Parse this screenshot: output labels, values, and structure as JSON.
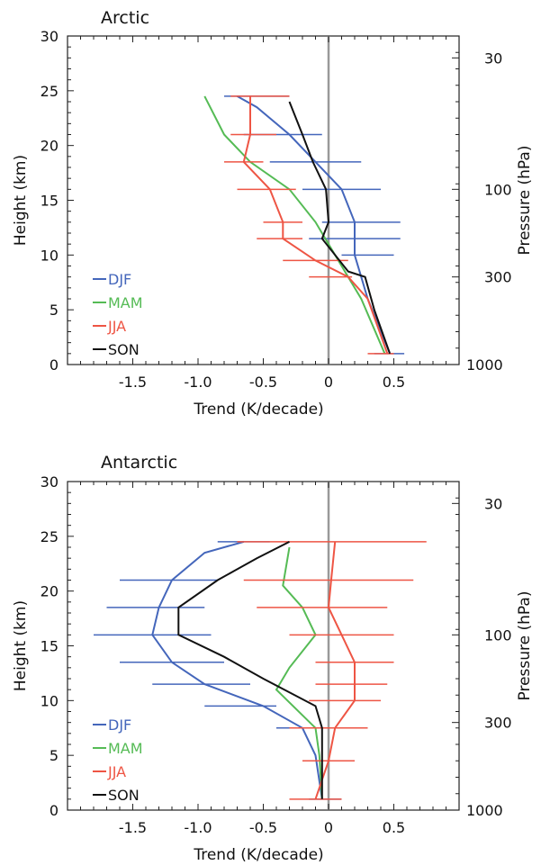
{
  "chart_data": [
    {
      "type": "line",
      "title": "Arctic",
      "xlabel": "Trend (K/decade)",
      "ylabel": "Height (km)",
      "ylabel_right": "Pressure (hPa)",
      "xlim": [
        -2.0,
        1.0
      ],
      "ylim": [
        0,
        30
      ],
      "xticks": [
        -1.5,
        -1.0,
        -0.5,
        0,
        0.5
      ],
      "xtick_labels": [
        "-1.5",
        "-1.0",
        "-0.5",
        "0",
        "0.5"
      ],
      "yticks": [
        0,
        5,
        10,
        15,
        20,
        25,
        30
      ],
      "ytick_labels": [
        "0",
        "5",
        "10",
        "15",
        "20",
        "25",
        "30"
      ],
      "right_ticks": [
        {
          "height": 28,
          "label": "30"
        },
        {
          "height": 16,
          "label": "100"
        },
        {
          "height": 8,
          "label": "300"
        },
        {
          "height": 0,
          "label": "1000"
        }
      ],
      "zero_line": 0,
      "legend_position": "lower-left",
      "series": [
        {
          "name": "DJF",
          "color": "#4466bb",
          "points": [
            [
              0.47,
              1
            ],
            [
              0.3,
              6
            ],
            [
              0.25,
              8
            ],
            [
              0.2,
              10
            ],
            [
              0.2,
              11.5
            ],
            [
              0.2,
              13
            ],
            [
              0.1,
              16
            ],
            [
              -0.1,
              18.5
            ],
            [
              -0.3,
              21
            ],
            [
              -0.55,
              23.5
            ],
            [
              -0.7,
              24.5
            ]
          ],
          "errors": [
            [
              0.35,
              0.58,
              1
            ],
            [
              0.1,
              0.5,
              10
            ],
            [
              -0.15,
              0.55,
              11.5
            ],
            [
              -0.05,
              0.55,
              13
            ],
            [
              -0.2,
              0.4,
              16
            ],
            [
              -0.45,
              0.25,
              18.5
            ],
            [
              -0.65,
              -0.05,
              21
            ],
            [
              -0.8,
              -0.3,
              24.5
            ]
          ]
        },
        {
          "name": "MAM",
          "color": "#55bb55",
          "points": [
            [
              0.43,
              1
            ],
            [
              0.25,
              6
            ],
            [
              0.15,
              8
            ],
            [
              0.0,
              11
            ],
            [
              -0.1,
              13
            ],
            [
              -0.3,
              16
            ],
            [
              -0.6,
              18.5
            ],
            [
              -0.8,
              21
            ],
            [
              -0.95,
              24.5
            ]
          ]
        },
        {
          "name": "JJA",
          "color": "#ee5544",
          "points": [
            [
              0.45,
              1
            ],
            [
              0.3,
              6
            ],
            [
              0.15,
              8
            ],
            [
              -0.1,
              9.5
            ],
            [
              -0.35,
              11.5
            ],
            [
              -0.35,
              13
            ],
            [
              -0.45,
              16
            ],
            [
              -0.65,
              18.5
            ],
            [
              -0.6,
              21
            ],
            [
              -0.6,
              24.5
            ]
          ],
          "errors": [
            [
              0.3,
              0.5,
              1
            ],
            [
              -0.15,
              0.18,
              8
            ],
            [
              -0.35,
              0.15,
              9.5
            ],
            [
              -0.55,
              -0.2,
              11.5
            ],
            [
              -0.5,
              -0.2,
              13
            ],
            [
              -0.7,
              -0.25,
              16
            ],
            [
              -0.8,
              -0.5,
              18.5
            ],
            [
              -0.75,
              -0.4,
              21
            ],
            [
              -0.75,
              -0.3,
              24.5
            ]
          ]
        },
        {
          "name": "SON",
          "color": "#111111",
          "points": [
            [
              0.47,
              1
            ],
            [
              0.35,
              5
            ],
            [
              0.28,
              8
            ],
            [
              0.15,
              8.5
            ],
            [
              -0.05,
              11.5
            ],
            [
              0.0,
              13
            ],
            [
              -0.02,
              16
            ],
            [
              -0.12,
              18.5
            ],
            [
              -0.2,
              21
            ],
            [
              -0.3,
              24
            ]
          ]
        }
      ]
    },
    {
      "type": "line",
      "title": "Antarctic",
      "xlabel": "Trend (K/decade)",
      "ylabel": "Height (km)",
      "ylabel_right": "Pressure (hPa)",
      "xlim": [
        -2.0,
        1.0
      ],
      "ylim": [
        0,
        30
      ],
      "xticks": [
        -1.5,
        -1.0,
        -0.5,
        0,
        0.5
      ],
      "xtick_labels": [
        "-1.5",
        "-1.0",
        "-0.5",
        "0",
        "0.5"
      ],
      "yticks": [
        0,
        5,
        10,
        15,
        20,
        25,
        30
      ],
      "ytick_labels": [
        "0",
        "5",
        "10",
        "15",
        "20",
        "25",
        "30"
      ],
      "right_ticks": [
        {
          "height": 28,
          "label": "30"
        },
        {
          "height": 16,
          "label": "100"
        },
        {
          "height": 8,
          "label": "300"
        },
        {
          "height": 0,
          "label": "1000"
        }
      ],
      "zero_line": 0,
      "legend_position": "lower-left",
      "series": [
        {
          "name": "DJF",
          "color": "#4466bb",
          "points": [
            [
              -0.05,
              1
            ],
            [
              -0.1,
              5
            ],
            [
              -0.2,
              7.5
            ],
            [
              -0.5,
              9.5
            ],
            [
              -0.95,
              11.5
            ],
            [
              -1.2,
              13.5
            ],
            [
              -1.35,
              16
            ],
            [
              -1.3,
              18.5
            ],
            [
              -1.2,
              21
            ],
            [
              -0.95,
              23.5
            ],
            [
              -0.65,
              24.5
            ]
          ],
          "errors": [
            [
              -0.15,
              0.1,
              1
            ],
            [
              -0.4,
              0.0,
              7.5
            ],
            [
              -0.95,
              -0.4,
              9.5
            ],
            [
              -1.35,
              -0.6,
              11.5
            ],
            [
              -1.6,
              -0.8,
              13.5
            ],
            [
              -1.8,
              -0.9,
              16
            ],
            [
              -1.7,
              -0.95,
              18.5
            ],
            [
              -1.6,
              -0.85,
              21
            ],
            [
              -0.85,
              -0.45,
              24.5
            ]
          ]
        },
        {
          "name": "MAM",
          "color": "#55bb55",
          "points": [
            [
              -0.05,
              1
            ],
            [
              -0.07,
              5
            ],
            [
              -0.1,
              7.5
            ],
            [
              -0.4,
              11
            ],
            [
              -0.3,
              13
            ],
            [
              -0.1,
              16
            ],
            [
              -0.2,
              18.5
            ],
            [
              -0.35,
              20.5
            ],
            [
              -0.3,
              24
            ]
          ]
        },
        {
          "name": "JJA",
          "color": "#ee5544",
          "points": [
            [
              -0.1,
              1
            ],
            [
              0.0,
              4.5
            ],
            [
              0.05,
              7.5
            ],
            [
              0.2,
              10
            ],
            [
              0.2,
              11.5
            ],
            [
              0.2,
              13.5
            ],
            [
              0.1,
              16
            ],
            [
              0.0,
              18.5
            ],
            [
              0.02,
              21
            ],
            [
              0.05,
              24.5
            ]
          ],
          "errors": [
            [
              -0.3,
              0.1,
              1
            ],
            [
              -0.2,
              0.2,
              4.5
            ],
            [
              -0.3,
              0.3,
              7.5
            ],
            [
              -0.15,
              0.4,
              10
            ],
            [
              -0.1,
              0.45,
              11.5
            ],
            [
              -0.1,
              0.5,
              13.5
            ],
            [
              -0.3,
              0.5,
              16
            ],
            [
              -0.55,
              0.45,
              18.5
            ],
            [
              -0.65,
              0.65,
              21
            ],
            [
              -0.7,
              0.75,
              24.5
            ]
          ]
        },
        {
          "name": "SON",
          "color": "#111111",
          "points": [
            [
              -0.05,
              1
            ],
            [
              -0.05,
              5
            ],
            [
              -0.05,
              7.5
            ],
            [
              -0.1,
              9.5
            ],
            [
              -0.5,
              12
            ],
            [
              -0.8,
              14
            ],
            [
              -1.15,
              16
            ],
            [
              -1.15,
              18.5
            ],
            [
              -0.85,
              21
            ],
            [
              -0.55,
              23
            ],
            [
              -0.3,
              24.5
            ]
          ]
        }
      ]
    }
  ]
}
